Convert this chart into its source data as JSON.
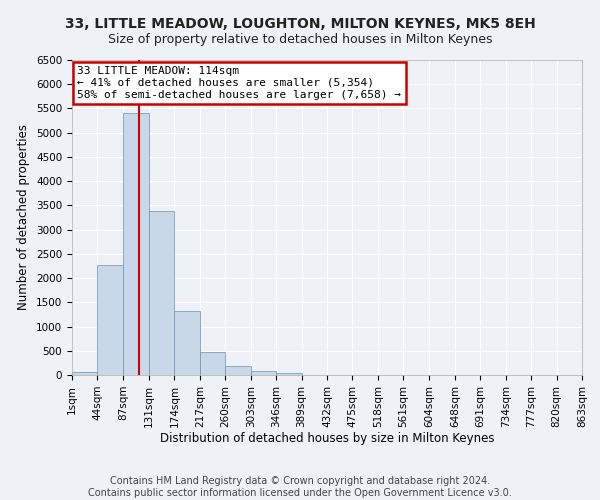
{
  "title": "33, LITTLE MEADOW, LOUGHTON, MILTON KEYNES, MK5 8EH",
  "subtitle": "Size of property relative to detached houses in Milton Keynes",
  "xlabel": "Distribution of detached houses by size in Milton Keynes",
  "ylabel": "Number of detached properties",
  "footer_line1": "Contains HM Land Registry data © Crown copyright and database right 2024.",
  "footer_line2": "Contains public sector information licensed under the Open Government Licence v3.0.",
  "annotation_title": "33 LITTLE MEADOW: 114sqm",
  "annotation_line2": "← 41% of detached houses are smaller (5,354)",
  "annotation_line3": "58% of semi-detached houses are larger (7,658) →",
  "subject_size": 114,
  "bin_edges": [
    1,
    44,
    87,
    131,
    174,
    217,
    260,
    303,
    346,
    389,
    432,
    475,
    518,
    561,
    604,
    648,
    691,
    734,
    777,
    820,
    863
  ],
  "bin_labels": [
    "1sqm",
    "44sqm",
    "87sqm",
    "131sqm",
    "174sqm",
    "217sqm",
    "260sqm",
    "303sqm",
    "346sqm",
    "389sqm",
    "432sqm",
    "475sqm",
    "518sqm",
    "561sqm",
    "604sqm",
    "648sqm",
    "691sqm",
    "734sqm",
    "777sqm",
    "820sqm",
    "863sqm"
  ],
  "bar_heights": [
    70,
    2280,
    5400,
    3380,
    1320,
    480,
    185,
    90,
    50,
    0,
    0,
    0,
    0,
    0,
    0,
    0,
    0,
    0,
    0,
    0
  ],
  "bar_color": "#c8d8e8",
  "bar_edge_color": "#7090b0",
  "vline_color": "#cc0000",
  "vline_x": 114,
  "ylim": [
    0,
    6500
  ],
  "yticks": [
    0,
    500,
    1000,
    1500,
    2000,
    2500,
    3000,
    3500,
    4000,
    4500,
    5000,
    5500,
    6000,
    6500
  ],
  "annotation_box_color": "#cc0000",
  "background_color": "#eef2f7",
  "grid_color": "#ffffff",
  "title_fontsize": 10,
  "subtitle_fontsize": 9,
  "axis_label_fontsize": 8.5,
  "tick_fontsize": 7.5,
  "annotation_fontsize": 8,
  "footer_fontsize": 7
}
